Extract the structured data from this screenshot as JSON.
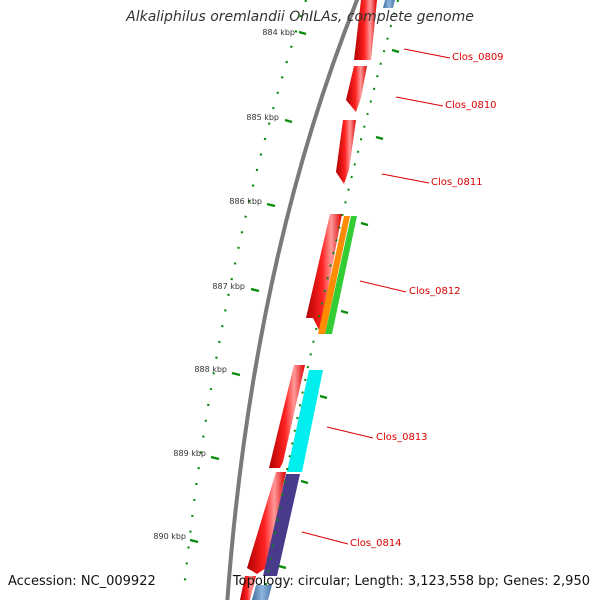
{
  "title": "Alkaliphilus oremlandii OhILAs, complete genome",
  "accession": "Accession: NC_009922",
  "summary": "Topology: circular; Length: 3,123,558 bp; Genes: 2,950",
  "colors": {
    "backbone": "#7a7a7a",
    "cds": "#ee1111",
    "cds_highlight": "#ff9999",
    "orange_feature": "#ff8c00",
    "green_feature": "#33cc33",
    "cyan_feature": "#00eeee",
    "purple_feature": "#4a3a8c",
    "blue_feature": "#6699cc",
    "tick": "#0a8a0a",
    "label": "#dd0000"
  },
  "kbp_ticks": [
    {
      "label": "884 kbp"
    },
    {
      "label": "885 kbp"
    },
    {
      "label": "886 kbp"
    },
    {
      "label": "887 kbp"
    },
    {
      "label": "888 kbp"
    },
    {
      "label": "889 kbp"
    },
    {
      "label": "890 kbp"
    }
  ],
  "genes": [
    {
      "label": "Clos_0809"
    },
    {
      "label": "Clos_0810"
    },
    {
      "label": "Clos_0811"
    },
    {
      "label": "Clos_0812"
    },
    {
      "label": "Clos_0813"
    },
    {
      "label": "Clos_0814"
    }
  ]
}
